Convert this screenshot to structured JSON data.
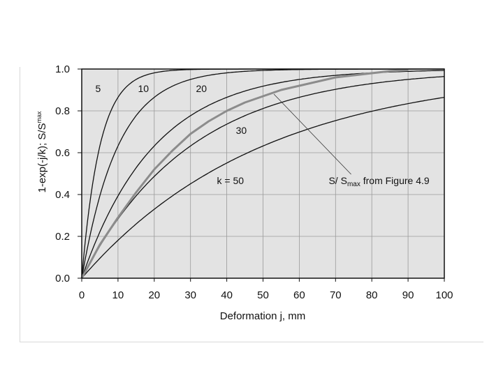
{
  "chart_data": {
    "type": "line",
    "title": "",
    "xlabel": "Deformation j, mm",
    "ylabel": "1-exp(-j/k); S/S",
    "ylabel_sup": "max",
    "xlim": [
      0,
      100
    ],
    "ylim": [
      0,
      1.0
    ],
    "x_ticks": [
      "0",
      "10",
      "20",
      "30",
      "40",
      "50",
      "60",
      "70",
      "80",
      "90",
      "100"
    ],
    "y_ticks": [
      "0.0",
      "0.2",
      "0.4",
      "0.6",
      "0.8",
      "1.0"
    ],
    "grid": "vertical and horizontal",
    "background": "#e3e3e3",
    "series": [
      {
        "name": "5",
        "k": 5,
        "x": [
          0,
          2.5,
          5,
          10,
          15,
          20,
          30,
          40,
          60,
          80,
          100
        ],
        "values": [
          0,
          0.39,
          0.63,
          0.86,
          0.95,
          0.98,
          1.0,
          1.0,
          1.0,
          1.0,
          1.0
        ],
        "color": "#111111"
      },
      {
        "name": "10",
        "k": 10,
        "x": [
          0,
          5,
          10,
          15,
          20,
          30,
          40,
          50,
          60,
          70,
          80,
          90,
          100
        ],
        "values": [
          0,
          0.39,
          0.63,
          0.78,
          0.86,
          0.95,
          0.98,
          0.99,
          1.0,
          1.0,
          1.0,
          1.0,
          1.0
        ],
        "color": "#111111"
      },
      {
        "name": "20",
        "k": 20,
        "x": [
          0,
          5,
          10,
          20,
          30,
          40,
          50,
          60,
          70,
          80,
          90,
          100
        ],
        "values": [
          0,
          0.22,
          0.39,
          0.63,
          0.78,
          0.86,
          0.92,
          0.95,
          0.97,
          0.98,
          0.99,
          0.99
        ],
        "color": "#111111"
      },
      {
        "name": "30",
        "k": 30,
        "x": [
          0,
          10,
          20,
          30,
          40,
          50,
          60,
          70,
          80,
          90,
          100
        ],
        "values": [
          0,
          0.28,
          0.49,
          0.63,
          0.74,
          0.81,
          0.86,
          0.9,
          0.93,
          0.95,
          0.96
        ],
        "color": "#111111"
      },
      {
        "name": "k = 50",
        "k": 50,
        "x": [
          0,
          10,
          20,
          30,
          40,
          50,
          60,
          70,
          80,
          90,
          100
        ],
        "values": [
          0,
          0.18,
          0.33,
          0.45,
          0.55,
          0.63,
          0.7,
          0.75,
          0.8,
          0.83,
          0.86
        ],
        "color": "#111111"
      },
      {
        "name": "S/S max from Figure 4.9",
        "x": [
          0,
          5,
          10,
          15,
          20,
          25,
          30,
          35,
          40,
          45,
          50,
          55,
          60,
          65,
          70,
          75,
          80,
          85,
          90
        ],
        "values": [
          0,
          0.16,
          0.29,
          0.41,
          0.52,
          0.61,
          0.69,
          0.75,
          0.8,
          0.84,
          0.87,
          0.9,
          0.92,
          0.94,
          0.96,
          0.97,
          0.98,
          0.99,
          0.995
        ],
        "color": "#8c8c8c"
      }
    ],
    "annotations": [
      {
        "text": "5",
        "x": 4.5,
        "y": 0.89
      },
      {
        "text": "10",
        "x": 17,
        "y": 0.89
      },
      {
        "text": "20",
        "x": 33,
        "y": 0.89
      },
      {
        "text": "30",
        "x": 44,
        "y": 0.69
      },
      {
        "text": "k = 50",
        "x": 41,
        "y": 0.45
      },
      {
        "text": "S/ S",
        "sub": "max",
        "rest": " from Figure 4.9",
        "x": 82,
        "y": 0.45,
        "arrow_to": [
          53,
          0.88
        ]
      }
    ]
  }
}
